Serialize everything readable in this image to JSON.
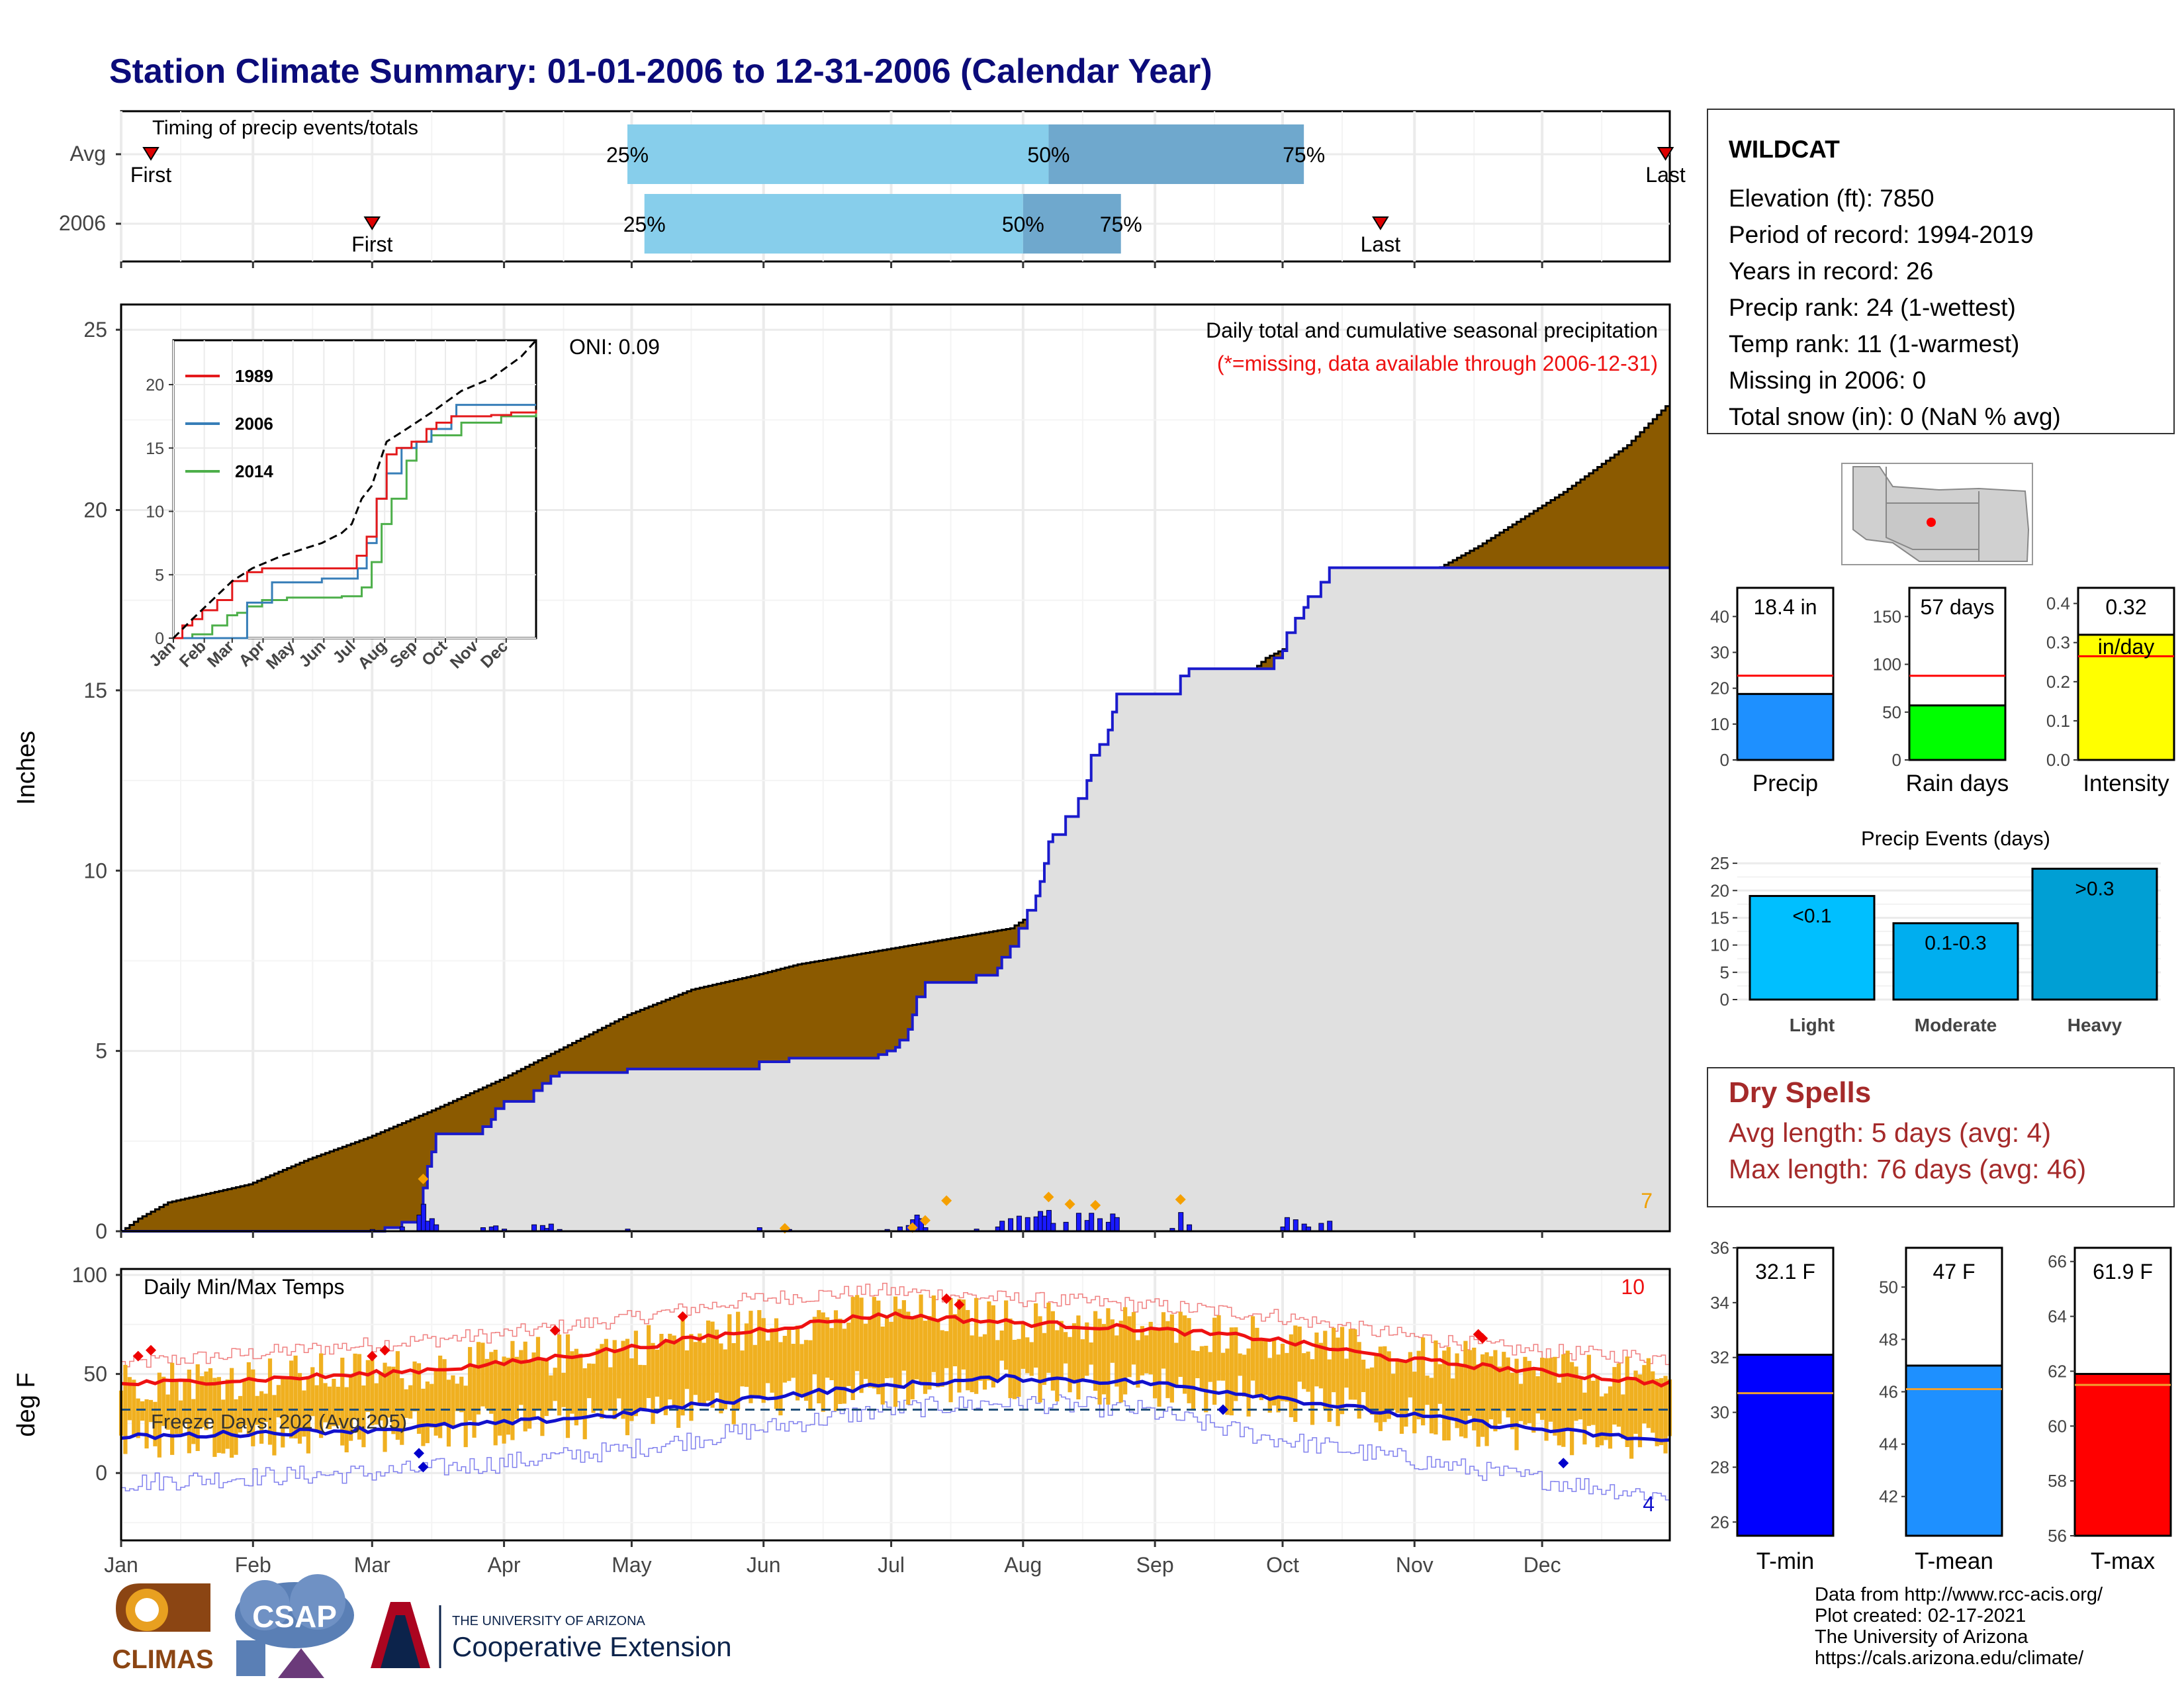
{
  "title": "Station Climate Summary: 01-01-2006 to 12-31-2006 (Calendar Year)",
  "colors": {
    "title": "#0b0b7a",
    "avg_band": "#87ceeb",
    "avg_band_dark": "#6fa8cd",
    "cum_fill": "#8b5a00",
    "obs_fill": "#e0e0e0",
    "obs_line": "#1a1acc",
    "precip_bar": "#1a1aff",
    "temp_bar": "#f0b020",
    "tmax_line": "#ee1111",
    "tmin_line": "#1111cc",
    "dry_spell_text": "#a52a2a",
    "missing_text": "#ee1111"
  },
  "months": [
    "Jan",
    "Feb",
    "Mar",
    "Apr",
    "May",
    "Jun",
    "Jul",
    "Aug",
    "Sep",
    "Oct",
    "Nov",
    "Dec"
  ],
  "timing_panel": {
    "label": "Timing of precip events/totals",
    "rows": [
      "Avg",
      "2006"
    ],
    "pct_labels": [
      "25%",
      "50%",
      "75%"
    ],
    "first_label": "First",
    "last_label": "Last",
    "avg": {
      "first_doy": 8,
      "p25": 120,
      "p50": 219,
      "p75": 279,
      "last_doy": 364
    },
    "y2006": {
      "first_doy": 60,
      "p25": 124,
      "p50": 213,
      "p75": 236,
      "last_doy": 297
    }
  },
  "precip_panel": {
    "ylabel": "Inches",
    "oni": "ONI: 0.09",
    "desc": "Daily total and cumulative seasonal precipitation",
    "missing_note": "(*=missing, data available through 2006-12-31)",
    "corner_count": "7",
    "yticks": [
      0,
      5,
      10,
      15,
      20,
      25
    ],
    "ylim": [
      0,
      25.7
    ],
    "avg_cum": [
      [
        1,
        0
      ],
      [
        5,
        0.35
      ],
      [
        12,
        0.8
      ],
      [
        31,
        1.3
      ],
      [
        45,
        2.0
      ],
      [
        59,
        2.6
      ],
      [
        75,
        3.4
      ],
      [
        90,
        4.2
      ],
      [
        105,
        5.1
      ],
      [
        120,
        6.0
      ],
      [
        135,
        6.7
      ],
      [
        150,
        7.1
      ],
      [
        160,
        7.4
      ],
      [
        175,
        7.7
      ],
      [
        190,
        8.0
      ],
      [
        200,
        8.2
      ],
      [
        210,
        8.4
      ],
      [
        220,
        9.2
      ],
      [
        230,
        10.5
      ],
      [
        240,
        12.0
      ],
      [
        250,
        13.6
      ],
      [
        260,
        14.8
      ],
      [
        270,
        15.9
      ],
      [
        280,
        16.5
      ],
      [
        300,
        17.7
      ],
      [
        320,
        19.0
      ],
      [
        340,
        20.5
      ],
      [
        355,
        21.8
      ],
      [
        365,
        23.0
      ]
    ],
    "obs_cum": [
      [
        1,
        0
      ],
      [
        60,
        0
      ],
      [
        63,
        0.1
      ],
      [
        67,
        0.25
      ],
      [
        71,
        0.4
      ],
      [
        72,
        1.2
      ],
      [
        73,
        1.8
      ],
      [
        74,
        2.2
      ],
      [
        75,
        2.7
      ],
      [
        86,
        2.9
      ],
      [
        88,
        3.1
      ],
      [
        89,
        3.4
      ],
      [
        91,
        3.6
      ],
      [
        98,
        3.9
      ],
      [
        100,
        4.1
      ],
      [
        102,
        4.3
      ],
      [
        104,
        4.4
      ],
      [
        118,
        4.4
      ],
      [
        120,
        4.5
      ],
      [
        148,
        4.5
      ],
      [
        151,
        4.7
      ],
      [
        158,
        4.8
      ],
      [
        179,
        4.9
      ],
      [
        181,
        5.0
      ],
      [
        183,
        5.1
      ],
      [
        184,
        5.3
      ],
      [
        186,
        5.6
      ],
      [
        187,
        6.0
      ],
      [
        188,
        6.5
      ],
      [
        190,
        6.9
      ],
      [
        200,
        6.9
      ],
      [
        202,
        7.1
      ],
      [
        207,
        7.3
      ],
      [
        208,
        7.6
      ],
      [
        210,
        7.9
      ],
      [
        212,
        8.4
      ],
      [
        214,
        8.9
      ],
      [
        216,
        9.3
      ],
      [
        217,
        9.7
      ],
      [
        218,
        10.2
      ],
      [
        219,
        10.8
      ],
      [
        220,
        11.0
      ],
      [
        223,
        11.5
      ],
      [
        226,
        12.0
      ],
      [
        228,
        12.5
      ],
      [
        229,
        13.2
      ],
      [
        231,
        13.5
      ],
      [
        233,
        13.9
      ],
      [
        234,
        14.4
      ],
      [
        235,
        14.9
      ],
      [
        248,
        14.9
      ],
      [
        250,
        15.4
      ],
      [
        252,
        15.6
      ],
      [
        262,
        15.6
      ],
      [
        272,
        15.9
      ],
      [
        274,
        16.1
      ],
      [
        275,
        16.6
      ],
      [
        277,
        17.0
      ],
      [
        279,
        17.3
      ],
      [
        280,
        17.6
      ],
      [
        283,
        18.0
      ],
      [
        285,
        18.4
      ],
      [
        365,
        18.4
      ]
    ],
    "daily_precip": [
      [
        60,
        0.05
      ],
      [
        67,
        0.12
      ],
      [
        71,
        0.45
      ],
      [
        72,
        0.75
      ],
      [
        73,
        0.28
      ],
      [
        74,
        0.35
      ],
      [
        75,
        0.18
      ],
      [
        86,
        0.1
      ],
      [
        88,
        0.12
      ],
      [
        89,
        0.15
      ],
      [
        91,
        0.06
      ],
      [
        98,
        0.18
      ],
      [
        100,
        0.16
      ],
      [
        101,
        0.08
      ],
      [
        102,
        0.2
      ],
      [
        104,
        0.05
      ],
      [
        120,
        0.06
      ],
      [
        151,
        0.1
      ],
      [
        158,
        0.05
      ],
      [
        181,
        0.05
      ],
      [
        184,
        0.12
      ],
      [
        186,
        0.16
      ],
      [
        187,
        0.32
      ],
      [
        188,
        0.45
      ],
      [
        189,
        0.35
      ],
      [
        190,
        0.1
      ],
      [
        202,
        0.06
      ],
      [
        207,
        0.12
      ],
      [
        208,
        0.28
      ],
      [
        210,
        0.35
      ],
      [
        212,
        0.42
      ],
      [
        214,
        0.38
      ],
      [
        216,
        0.4
      ],
      [
        217,
        0.55
      ],
      [
        218,
        0.42
      ],
      [
        219,
        0.58
      ],
      [
        220,
        0.22
      ],
      [
        223,
        0.25
      ],
      [
        226,
        0.5
      ],
      [
        228,
        0.3
      ],
      [
        229,
        0.5
      ],
      [
        231,
        0.35
      ],
      [
        233,
        0.25
      ],
      [
        234,
        0.48
      ],
      [
        235,
        0.38
      ],
      [
        248,
        0.08
      ],
      [
        250,
        0.52
      ],
      [
        252,
        0.18
      ],
      [
        274,
        0.12
      ],
      [
        275,
        0.38
      ],
      [
        277,
        0.32
      ],
      [
        279,
        0.2
      ],
      [
        280,
        0.12
      ],
      [
        283,
        0.22
      ],
      [
        285,
        0.28
      ]
    ],
    "precip_markers": [
      [
        72,
        1.45
      ],
      [
        157,
        0.08
      ],
      [
        187,
        0.1
      ],
      [
        190,
        0.3
      ],
      [
        195,
        0.85
      ],
      [
        219,
        0.95
      ],
      [
        224,
        0.75
      ],
      [
        230,
        0.72
      ],
      [
        250,
        0.88
      ]
    ]
  },
  "inset": {
    "yticks": [
      0,
      5,
      10,
      15,
      20
    ],
    "ylim": [
      0,
      23.5
    ],
    "legend": [
      "1989",
      "2006",
      "2014"
    ],
    "legend_colors": [
      "#e41a1c",
      "#377eb8",
      "#4daf4a"
    ],
    "avg": [
      [
        1,
        0
      ],
      [
        20,
        1.5
      ],
      [
        40,
        3.0
      ],
      [
        60,
        4.5
      ],
      [
        80,
        5.5
      ],
      [
        110,
        6.5
      ],
      [
        150,
        7.5
      ],
      [
        170,
        8.3
      ],
      [
        180,
        9.0
      ],
      [
        190,
        11.0
      ],
      [
        200,
        12.0
      ],
      [
        215,
        15.5
      ],
      [
        235,
        16.5
      ],
      [
        260,
        17.8
      ],
      [
        290,
        19.5
      ],
      [
        320,
        20.5
      ],
      [
        350,
        22.2
      ],
      [
        365,
        23.5
      ]
    ],
    "s1989": [
      [
        1,
        0
      ],
      [
        10,
        1.0
      ],
      [
        20,
        1.5
      ],
      [
        30,
        2.2
      ],
      [
        45,
        3.0
      ],
      [
        60,
        4.5
      ],
      [
        75,
        5.2
      ],
      [
        90,
        5.5
      ],
      [
        180,
        5.5
      ],
      [
        185,
        6.5
      ],
      [
        195,
        8.0
      ],
      [
        205,
        11.0
      ],
      [
        215,
        14.5
      ],
      [
        225,
        15.0
      ],
      [
        240,
        15.5
      ],
      [
        255,
        16.5
      ],
      [
        265,
        17.0
      ],
      [
        280,
        17.5
      ],
      [
        320,
        17.6
      ],
      [
        340,
        17.8
      ],
      [
        365,
        18.0
      ]
    ],
    "s2006": [
      [
        1,
        0
      ],
      [
        60,
        0
      ],
      [
        75,
        2.8
      ],
      [
        100,
        4.4
      ],
      [
        150,
        4.7
      ],
      [
        186,
        5.5
      ],
      [
        195,
        7.5
      ],
      [
        205,
        11.0
      ],
      [
        215,
        13.0
      ],
      [
        230,
        15.0
      ],
      [
        245,
        15.5
      ],
      [
        260,
        16.5
      ],
      [
        280,
        17.5
      ],
      [
        285,
        18.4
      ],
      [
        365,
        18.4
      ]
    ],
    "s2014": [
      [
        1,
        0
      ],
      [
        20,
        0.3
      ],
      [
        40,
        1.0
      ],
      [
        55,
        1.8
      ],
      [
        65,
        2.0
      ],
      [
        75,
        2.5
      ],
      [
        90,
        3.0
      ],
      [
        100,
        3.0
      ],
      [
        115,
        3.2
      ],
      [
        170,
        3.3
      ],
      [
        190,
        4.0
      ],
      [
        200,
        6.0
      ],
      [
        210,
        9.0
      ],
      [
        220,
        11.0
      ],
      [
        235,
        14.0
      ],
      [
        245,
        15.5
      ],
      [
        260,
        16.0
      ],
      [
        290,
        17.0
      ],
      [
        330,
        17.5
      ],
      [
        365,
        18.0
      ]
    ]
  },
  "temp_panel": {
    "ylabel": "deg F",
    "label": "Daily Min/Max Temps",
    "freeze_label": "Freeze Days: 202 (Avg:205)",
    "top_right_count": "10",
    "bottom_right_count": "4",
    "yticks": [
      0,
      50,
      100
    ],
    "ylim": [
      -34,
      103
    ],
    "freeze_line": 32,
    "avg_max": [
      [
        1,
        45
      ],
      [
        30,
        47
      ],
      [
        60,
        50
      ],
      [
        90,
        55
      ],
      [
        120,
        63
      ],
      [
        150,
        72
      ],
      [
        180,
        80
      ],
      [
        210,
        76
      ],
      [
        240,
        73
      ],
      [
        270,
        68
      ],
      [
        300,
        58
      ],
      [
        330,
        52
      ],
      [
        365,
        45
      ]
    ],
    "avg_min": [
      [
        1,
        18
      ],
      [
        30,
        20
      ],
      [
        60,
        22
      ],
      [
        90,
        25
      ],
      [
        120,
        30
      ],
      [
        150,
        38
      ],
      [
        180,
        44
      ],
      [
        210,
        48
      ],
      [
        240,
        46
      ],
      [
        270,
        39
      ],
      [
        300,
        30
      ],
      [
        330,
        23
      ],
      [
        365,
        16
      ]
    ],
    "rec_max": [
      [
        1,
        55
      ],
      [
        30,
        60
      ],
      [
        60,
        65
      ],
      [
        90,
        70
      ],
      [
        120,
        78
      ],
      [
        150,
        88
      ],
      [
        180,
        92
      ],
      [
        210,
        88
      ],
      [
        240,
        85
      ],
      [
        270,
        80
      ],
      [
        300,
        70
      ],
      [
        330,
        62
      ],
      [
        365,
        58
      ]
    ],
    "rec_min": [
      [
        1,
        -5
      ],
      [
        30,
        -2
      ],
      [
        60,
        0
      ],
      [
        90,
        5
      ],
      [
        120,
        12
      ],
      [
        150,
        22
      ],
      [
        180,
        32
      ],
      [
        210,
        36
      ],
      [
        240,
        32
      ],
      [
        270,
        18
      ],
      [
        300,
        8
      ],
      [
        330,
        -2
      ],
      [
        365,
        -12
      ]
    ],
    "red_markers": [
      [
        5,
        59
      ],
      [
        8,
        62
      ],
      [
        60,
        59
      ],
      [
        63,
        62
      ],
      [
        103,
        72
      ],
      [
        133,
        79
      ],
      [
        195,
        88
      ],
      [
        198,
        85
      ],
      [
        320,
        70
      ],
      [
        321,
        68
      ]
    ],
    "blue_markers": [
      [
        71,
        10
      ],
      [
        72,
        3
      ],
      [
        260,
        32
      ],
      [
        340,
        5
      ]
    ]
  },
  "info_box": {
    "station": "WILDCAT",
    "lines": [
      "Elevation (ft): 7850",
      "Period of record: 1994-2019",
      "Years in record: 26",
      "Precip rank: 24 (1-wettest)",
      "Temp rank: 11 (1-warmest)",
      "Missing in 2006: 0",
      "Total snow (in): 0 (NaN % avg)"
    ]
  },
  "mini_bars": [
    {
      "label": "Precip",
      "value": 18.4,
      "value_text": "18.4 in",
      "avg": 23.5,
      "ylim": [
        0,
        48
      ],
      "yticks": [
        0,
        10,
        20,
        30,
        40
      ],
      "color": "#1e90ff"
    },
    {
      "label": "Rain days",
      "value": 57,
      "value_text": "57 days",
      "avg": 88,
      "ylim": [
        0,
        180
      ],
      "yticks": [
        0,
        50,
        100,
        150
      ],
      "color": "#00ff00"
    },
    {
      "label": "Intensity",
      "value": 0.32,
      "value_text": "0.32",
      "value_text2": "in/day",
      "avg": 0.265,
      "ylim": [
        0,
        0.44
      ],
      "yticks": [
        "0.0",
        "0.1",
        "0.2",
        "0.3",
        "0.4"
      ],
      "color": "#ffff00"
    }
  ],
  "precip_events": {
    "title": "Precip Events (days)",
    "categories": [
      "Light",
      "Moderate",
      "Heavy"
    ],
    "labels": [
      "<0.1",
      "0.1-0.3",
      ">0.3"
    ],
    "values": [
      19,
      14,
      24
    ],
    "colors": [
      "#00bfff",
      "#00aeef",
      "#009fd4"
    ],
    "ylim": [
      0,
      25.5
    ],
    "yticks": [
      0,
      5,
      10,
      15,
      20,
      25
    ]
  },
  "dry_spells": {
    "title": "Dry Spells",
    "avg_length": "Avg length: 5 days (avg: 4)",
    "max_length": "Max length: 76 days (avg: 46)"
  },
  "temp_bars": [
    {
      "label": "T-min",
      "value": 32.1,
      "value_text": "32.1 F",
      "avg": 30.7,
      "ylim": [
        25.5,
        36
      ],
      "yticks": [
        26,
        28,
        30,
        32,
        34,
        36
      ],
      "color": "#0000ff"
    },
    {
      "label": "T-mean",
      "value": 47,
      "value_text": "47 F",
      "avg": 46.1,
      "ylim": [
        40.5,
        51.5
      ],
      "yticks": [
        42,
        44,
        46,
        48,
        50
      ],
      "color": "#1e90ff"
    },
    {
      "label": "T-max",
      "value": 61.9,
      "value_text": "61.9 F",
      "avg": 61.5,
      "ylim": [
        56,
        66.5
      ],
      "yticks": [
        56,
        58,
        60,
        62,
        64,
        66
      ],
      "color": "#ff0000"
    }
  ],
  "credits": [
    "Data from http://www.rcc-acis.org/",
    "Plot created: 02-17-2021",
    "The University of Arizona",
    "https://cals.arizona.edu/climate/"
  ],
  "logos": {
    "climas": "CLIMAS",
    "csap": "CSAP",
    "ua_small": "THE UNIVERSITY OF ARIZONA",
    "ua_big": "Cooperative Extension"
  }
}
